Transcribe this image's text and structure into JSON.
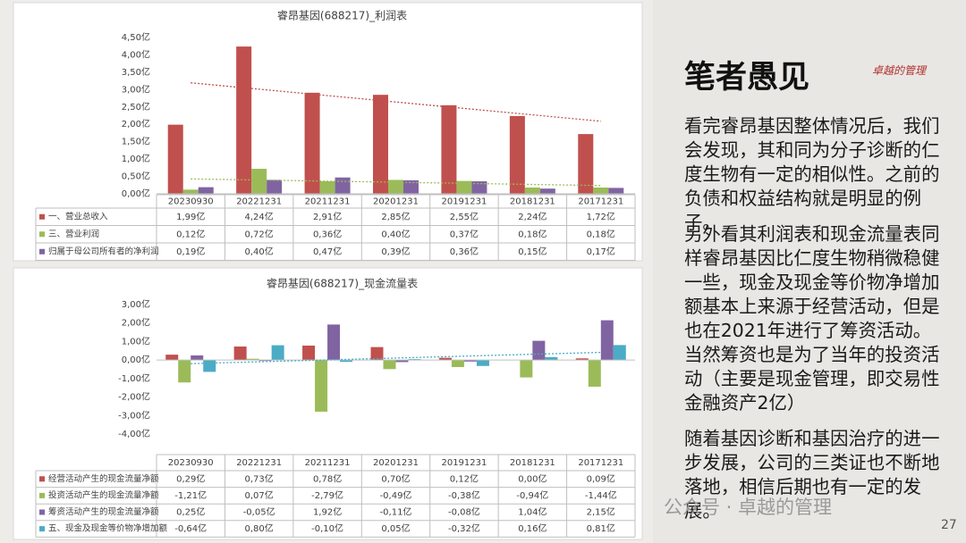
{
  "chart_data": [
    {
      "type": "bar",
      "title": "睿昂基因(688217)_利润表",
      "categories": [
        "20230930",
        "20221231",
        "20211231",
        "20201231",
        "20191231",
        "20181231",
        "20171231"
      ],
      "series": [
        {
          "name": "一、营业总收入",
          "color": "#c0504d",
          "trendline": true,
          "values": [
            1.99,
            4.24,
            2.91,
            2.85,
            2.55,
            2.24,
            1.72
          ],
          "value_labels": [
            "1,99亿",
            "4,24亿",
            "2,91亿",
            "2,85亿",
            "2,55亿",
            "2,24亿",
            "1,72亿"
          ]
        },
        {
          "name": "三、营业利润",
          "color": "#9bbb59",
          "trendline": true,
          "values": [
            0.12,
            0.72,
            0.36,
            0.4,
            0.37,
            0.18,
            0.18
          ],
          "value_labels": [
            "0,12亿",
            "0,72亿",
            "0,36亿",
            "0,40亿",
            "0,37亿",
            "0,18亿",
            "0,18亿"
          ]
        },
        {
          "name": "归属于母公司所有者的净利润",
          "color": "#8064a2",
          "values": [
            0.19,
            0.4,
            0.47,
            0.39,
            0.36,
            0.15,
            0.17
          ],
          "value_labels": [
            "0,19亿",
            "0,40亿",
            "0,47亿",
            "0,39亿",
            "0,36亿",
            "0,15亿",
            "0,17亿"
          ]
        }
      ],
      "ylim": [
        0,
        4.5
      ],
      "yticks": [
        {
          "value": 0,
          "label": "0,00亿"
        },
        {
          "value": 0.5,
          "label": "0,50亿"
        },
        {
          "value": 1,
          "label": "1,00亿"
        },
        {
          "value": 1.5,
          "label": "1,50亿"
        },
        {
          "value": 2,
          "label": "2,00亿"
        },
        {
          "value": 2.5,
          "label": "2,50亿"
        },
        {
          "value": 3,
          "label": "3,00亿"
        },
        {
          "value": 3.5,
          "label": "3,50亿"
        },
        {
          "value": 4,
          "label": "4,00亿"
        },
        {
          "value": 4.5,
          "label": "4,50亿"
        }
      ],
      "grid": false
    },
    {
      "type": "bar",
      "title": "睿昂基因(688217)_现金流量表",
      "categories": [
        "20230930",
        "20221231",
        "20211231",
        "20201231",
        "20191231",
        "20181231",
        "20171231"
      ],
      "series": [
        {
          "name": "经营活动产生的现金流量净额",
          "color": "#c0504d",
          "values": [
            0.29,
            0.73,
            0.78,
            0.7,
            0.12,
            0.0,
            0.09
          ],
          "value_labels": [
            "0,29亿",
            "0,73亿",
            "0,78亿",
            "0,70亿",
            "0,12亿",
            "0,00亿",
            "0,09亿"
          ]
        },
        {
          "name": "投资活动产生的现金流量净额",
          "color": "#9bbb59",
          "values": [
            -1.21,
            0.07,
            -2.79,
            -0.49,
            -0.38,
            -0.94,
            -1.44
          ],
          "value_labels": [
            "-1,21亿",
            "0,07亿",
            "-2,79亿",
            "-0,49亿",
            "-0,38亿",
            "-0,94亿",
            "-1,44亿"
          ]
        },
        {
          "name": "筹资活动产生的现金流量净额",
          "color": "#8064a2",
          "values": [
            0.25,
            -0.05,
            1.92,
            -0.11,
            -0.08,
            1.04,
            2.15
          ],
          "value_labels": [
            "0,25亿",
            "-0,05亿",
            "1,92亿",
            "-0,11亿",
            "-0,08亿",
            "1,04亿",
            "2,15亿"
          ]
        },
        {
          "name": "五、现金及现金等价物净增加额",
          "color": "#4bacc6",
          "trendline": true,
          "values": [
            -0.64,
            0.8,
            -0.1,
            0.05,
            -0.32,
            0.16,
            0.81
          ],
          "value_labels": [
            "-0,64亿",
            "0,80亿",
            "-0,10亿",
            "0,05亿",
            "-0,32亿",
            "0,16亿",
            "0,81亿"
          ]
        }
      ],
      "ylim": [
        -4,
        3
      ],
      "yticks": [
        {
          "value": -4,
          "label": "-4,00亿"
        },
        {
          "value": -3,
          "label": "-3,00亿"
        },
        {
          "value": -2,
          "label": "-2,00亿"
        },
        {
          "value": -1,
          "label": "-1,00亿"
        },
        {
          "value": 0,
          "label": "0,00亿"
        },
        {
          "value": 1,
          "label": "1,00亿"
        },
        {
          "value": 2,
          "label": "2,00亿"
        },
        {
          "value": 3,
          "label": "3,00亿"
        }
      ],
      "grid": false
    }
  ],
  "panel": {
    "heading": "笔者愚见",
    "paragraphs": [
      "看完睿昂基因整体情况后，我们会发现，其和同为分子诊断的仁度生物有一定的相似性。之前的负债和权益结构就是明显的例子。",
      "另外看其利润表和现金流量表同样睿昂基因比仁度生物稍微稳健一些，现金及现金等价物净增加额基本上来源于经营活动，但是也在2021年进行了筹资活动。当然筹资也是为了当年的投资活动（主要是现金管理，即交易性金融资产2亿）",
      "随着基因诊断和基因治疗的进一步发展，公司的三类证也不断地落地，相信后期也有一定的发展。"
    ]
  },
  "logo": "卓越的管理",
  "watermark": "公众号 · 卓越的管理",
  "page_number": "27"
}
